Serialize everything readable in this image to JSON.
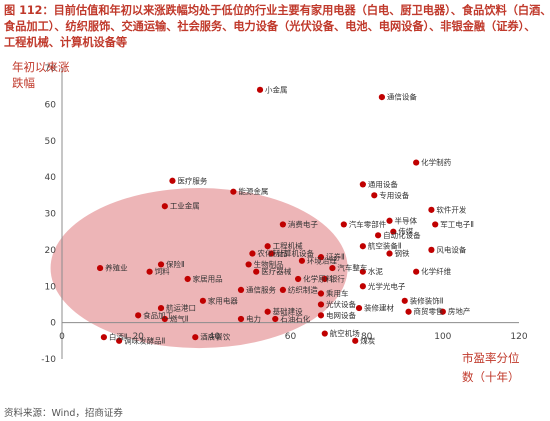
{
  "caption": {
    "line1": "图 112：目前估值和年初以来涨跌幅均处于低位的行业主要有家用电器（白电、厨卫电器）、食品饮料（白酒、",
    "line2": "食品加工）、纺织服饰、交通运输、社会服务、电力设备（光伏设备、电池、电网设备）、非银金融（证券）、",
    "line3": "工程机械、计算机设备等"
  },
  "source": "资料来源：Wind，招商证券",
  "colors": {
    "point": "#c00000",
    "ellipse": "#e8a0a3",
    "caption": "#c0392b"
  },
  "chart_data": {
    "type": "scatter",
    "ylabel_line1": "年初以来涨",
    "ylabel_line2": "跌幅",
    "xlabel_line1": "市盈率分位",
    "xlabel_line2": "数（十年）",
    "xlim": [
      0,
      120
    ],
    "ylim": [
      -10,
      70
    ],
    "x_ticks": [
      0,
      20,
      40,
      60,
      80,
      100,
      120
    ],
    "y_ticks": [
      -10,
      0,
      10,
      20,
      30,
      40,
      50,
      60,
      70
    ],
    "highlight": {
      "shape": "ellipse",
      "cx": 36,
      "cy": 15,
      "rx": 39,
      "ry": 22
    },
    "points": [
      {
        "label": "小金属",
        "x": 52,
        "y": 64
      },
      {
        "label": "通信设备",
        "x": 84,
        "y": 62
      },
      {
        "label": "化学制药",
        "x": 93,
        "y": 44
      },
      {
        "label": "通用设备",
        "x": 79,
        "y": 38
      },
      {
        "label": "专用设备",
        "x": 82,
        "y": 35
      },
      {
        "label": "医疗服务",
        "x": 29,
        "y": 39
      },
      {
        "label": "能源金属",
        "x": 45,
        "y": 36
      },
      {
        "label": "工业金属",
        "x": 27,
        "y": 32
      },
      {
        "label": "软件开发",
        "x": 97,
        "y": 31
      },
      {
        "label": "军工电子Ⅱ",
        "x": 98,
        "y": 27
      },
      {
        "label": "半导体",
        "x": 86,
        "y": 28
      },
      {
        "label": "传媒",
        "x": 87,
        "y": 25
      },
      {
        "label": "汽车零部件",
        "x": 74,
        "y": 27
      },
      {
        "label": "消费电子",
        "x": 58,
        "y": 27
      },
      {
        "label": "自动化设备",
        "x": 83,
        "y": 24
      },
      {
        "label": "计算机设备",
        "x": 55,
        "y": 19
      },
      {
        "label": "工程机械",
        "x": 54,
        "y": 21
      },
      {
        "label": "航空装备Ⅱ",
        "x": 79,
        "y": 21
      },
      {
        "label": "钢铁",
        "x": 86,
        "y": 19
      },
      {
        "label": "风电设备",
        "x": 97,
        "y": 20
      },
      {
        "label": "农化制品",
        "x": 50,
        "y": 19
      },
      {
        "label": "证券Ⅱ",
        "x": 68,
        "y": 18
      },
      {
        "label": "生物制品",
        "x": 49,
        "y": 16
      },
      {
        "label": "环境治理",
        "x": 63,
        "y": 17
      },
      {
        "label": "保险Ⅱ",
        "x": 26,
        "y": 16
      },
      {
        "label": "汽车整车",
        "x": 71,
        "y": 15
      },
      {
        "label": "水泥",
        "x": 79,
        "y": 14
      },
      {
        "label": "化学纤维",
        "x": 93,
        "y": 14
      },
      {
        "label": "医疗器械",
        "x": 51,
        "y": 14
      },
      {
        "label": "化学原料",
        "x": 62,
        "y": 12
      },
      {
        "label": "银行",
        "x": 69,
        "y": 12
      },
      {
        "label": "光学光电子",
        "x": 79,
        "y": 10
      },
      {
        "label": "养殖业",
        "x": 10,
        "y": 15
      },
      {
        "label": "饲料",
        "x": 23,
        "y": 14
      },
      {
        "label": "家居用品",
        "x": 33,
        "y": 12
      },
      {
        "label": "通信服务",
        "x": 47,
        "y": 9
      },
      {
        "label": "纺织制造",
        "x": 58,
        "y": 9
      },
      {
        "label": "乘用车",
        "x": 68,
        "y": 8
      },
      {
        "label": "光伏设备",
        "x": 68,
        "y": 5
      },
      {
        "label": "装修建材",
        "x": 78,
        "y": 4
      },
      {
        "label": "装修装饰Ⅱ",
        "x": 90,
        "y": 6
      },
      {
        "label": "家用电器",
        "x": 37,
        "y": 6
      },
      {
        "label": "航运港口",
        "x": 26,
        "y": 4
      },
      {
        "label": "基础建设",
        "x": 54,
        "y": 3
      },
      {
        "label": "电网设备",
        "x": 68,
        "y": 2
      },
      {
        "label": "商贸零售",
        "x": 91,
        "y": 3
      },
      {
        "label": "房地产",
        "x": 100,
        "y": 3
      },
      {
        "label": "食品加工",
        "x": 20,
        "y": 2
      },
      {
        "label": "燃气Ⅱ",
        "x": 27,
        "y": 1
      },
      {
        "label": "电力",
        "x": 47,
        "y": 1
      },
      {
        "label": "石油石化",
        "x": 56,
        "y": 1
      },
      {
        "label": "白酒Ⅱ",
        "x": 11,
        "y": -4
      },
      {
        "label": "调味发酵品Ⅱ",
        "x": 15,
        "y": -5
      },
      {
        "label": "酒店餐饮",
        "x": 35,
        "y": -4
      },
      {
        "label": "航空机场",
        "x": 69,
        "y": -3
      },
      {
        "label": "煤炭",
        "x": 77,
        "y": -5
      }
    ]
  }
}
